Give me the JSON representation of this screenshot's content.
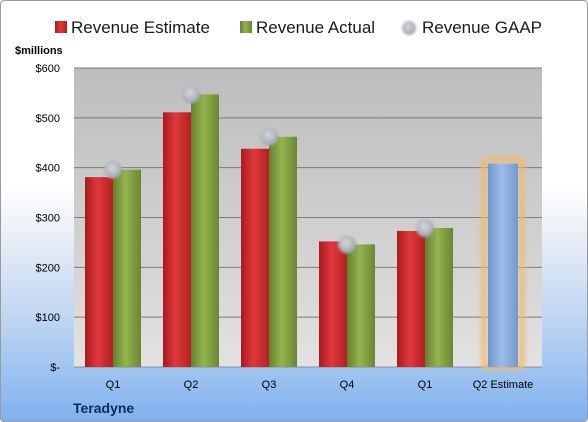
{
  "chart_data": {
    "type": "bar",
    "unit_label": "$millions",
    "categories": [
      "Q1",
      "Q2",
      "Q3",
      "Q4",
      "Q1",
      "Q2 Estimate"
    ],
    "y_ticks": [
      "$-",
      "$100",
      "$200",
      "$300",
      "$400",
      "$500",
      "$600"
    ],
    "ylim": [
      0,
      600
    ],
    "grid": true,
    "legend_position": "top",
    "series": [
      {
        "name": "Revenue Estimate",
        "type": "bar",
        "color": "#c8282b",
        "values": [
          381,
          511,
          438,
          252,
          273,
          null
        ]
      },
      {
        "name": "Revenue Actual",
        "type": "bar",
        "color": "#7e9d3e",
        "values": [
          396,
          547,
          462,
          246,
          279,
          null
        ]
      },
      {
        "name": "Revenue GAAP",
        "type": "scatter",
        "color": "#b8bcc4",
        "values": [
          396,
          547,
          462,
          246,
          279,
          null
        ]
      }
    ],
    "estimate": {
      "category_index": 5,
      "value": 408,
      "color": "#7fa7d8",
      "glow_color": "#f0b870"
    }
  },
  "footer": {
    "company": "Teradyne"
  }
}
